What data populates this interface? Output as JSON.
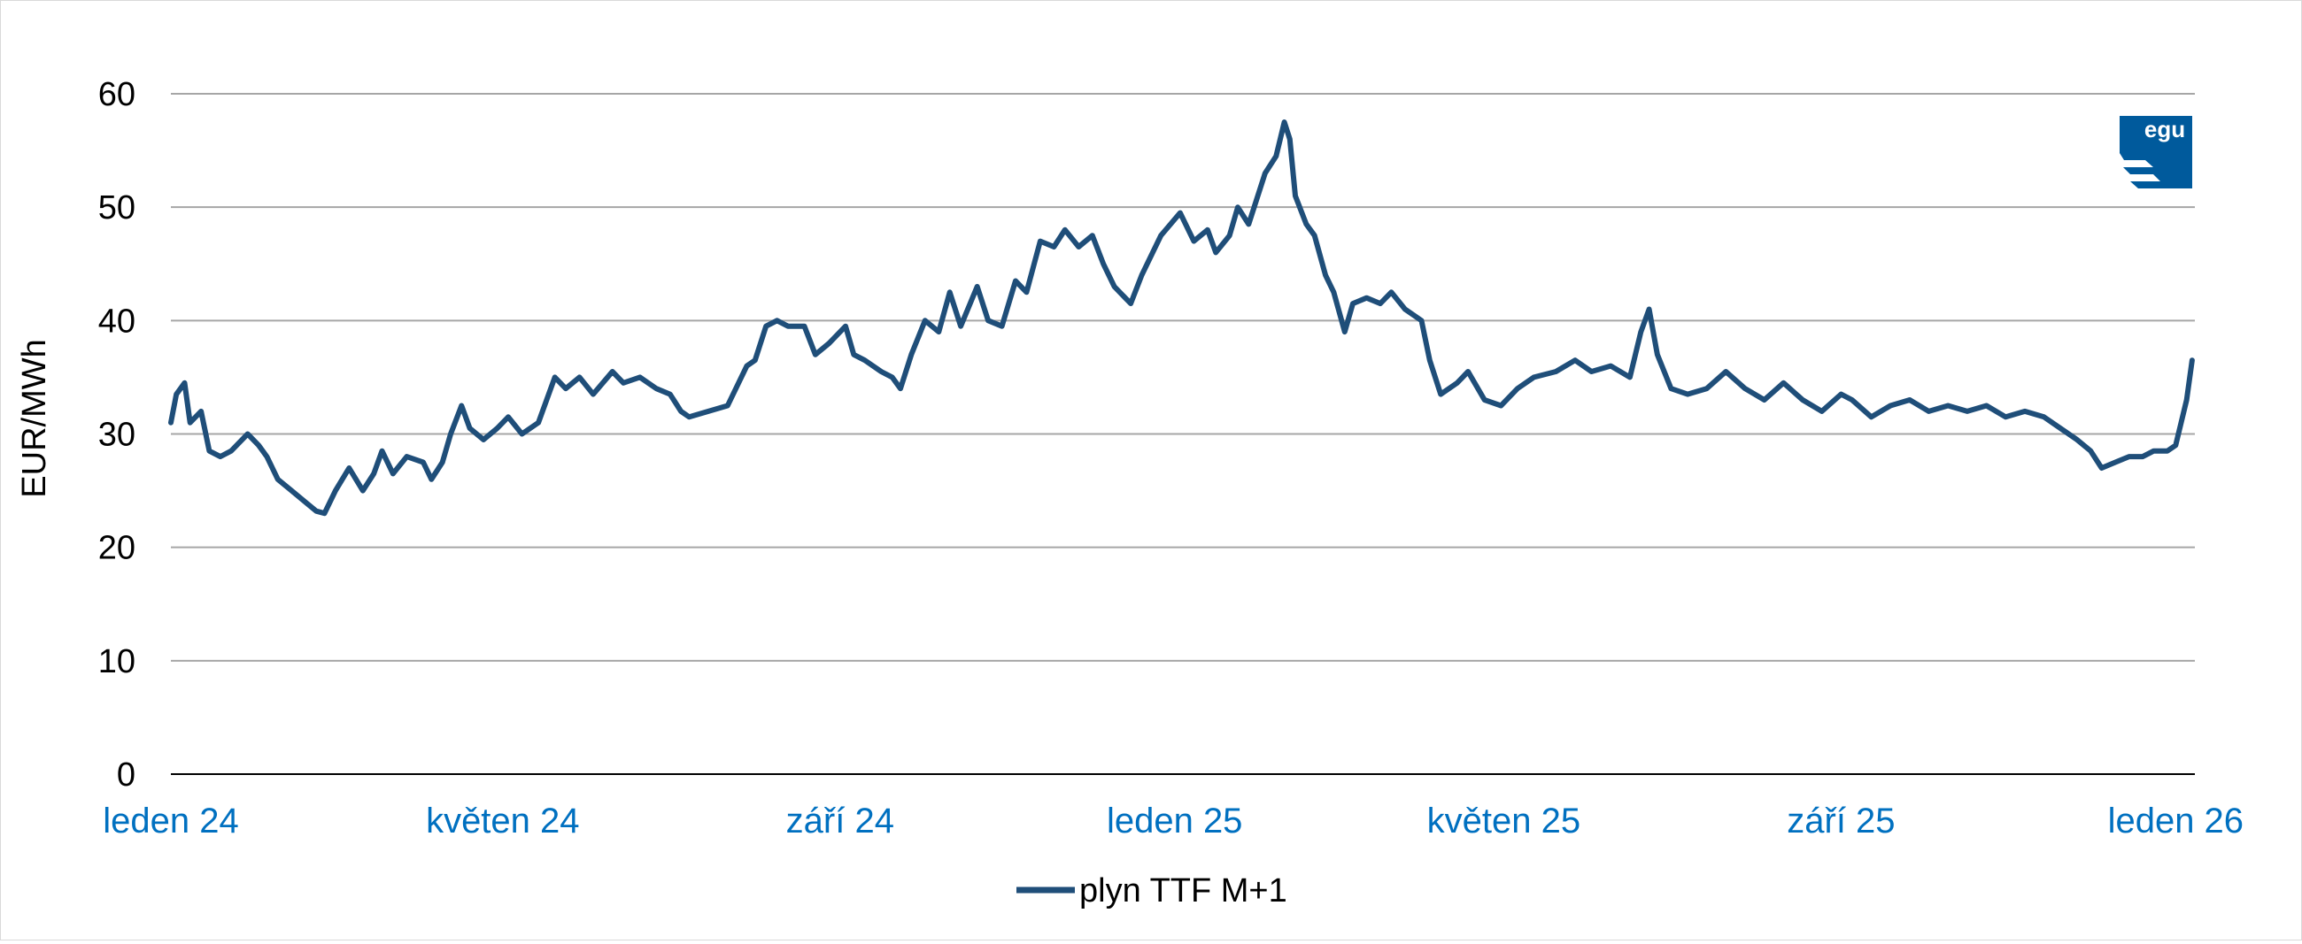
{
  "chart_data": {
    "type": "line",
    "title": "",
    "xlabel": "",
    "ylabel": "EUR/MWh",
    "ylim": [
      0,
      60
    ],
    "yticks": [
      0,
      10,
      20,
      30,
      40,
      50,
      60
    ],
    "xlim": [
      "2024-01-01",
      "2026-01-08"
    ],
    "grid": true,
    "legend_position": "bottom",
    "xticks": [
      {
        "date": "2024-01-01",
        "label": "leden 24"
      },
      {
        "date": "2024-05-01",
        "label": "květen 24"
      },
      {
        "date": "2024-09-01",
        "label": "září 24"
      },
      {
        "date": "2025-01-01",
        "label": "leden 25"
      },
      {
        "date": "2025-05-01",
        "label": "květen 25"
      },
      {
        "date": "2025-09-01",
        "label": "září 25"
      },
      {
        "date": "2026-01-01",
        "label": "leden 26"
      }
    ],
    "series": [
      {
        "name": "plyn TTF M+1",
        "color": "#1f4e79",
        "points": [
          [
            "2024-01-01",
            31.0
          ],
          [
            "2024-01-03",
            33.5
          ],
          [
            "2024-01-06",
            34.5
          ],
          [
            "2024-01-08",
            31.0
          ],
          [
            "2024-01-12",
            32.0
          ],
          [
            "2024-01-15",
            28.5
          ],
          [
            "2024-01-19",
            28.0
          ],
          [
            "2024-01-23",
            28.5
          ],
          [
            "2024-01-29",
            30.0
          ],
          [
            "2024-02-02",
            29.0
          ],
          [
            "2024-02-05",
            28.0
          ],
          [
            "2024-02-09",
            26.0
          ],
          [
            "2024-02-14",
            25.0
          ],
          [
            "2024-02-19",
            24.0
          ],
          [
            "2024-02-23",
            23.2
          ],
          [
            "2024-02-26",
            23.0
          ],
          [
            "2024-03-01",
            25.0
          ],
          [
            "2024-03-06",
            27.0
          ],
          [
            "2024-03-11",
            25.0
          ],
          [
            "2024-03-15",
            26.5
          ],
          [
            "2024-03-18",
            28.5
          ],
          [
            "2024-03-22",
            26.5
          ],
          [
            "2024-03-27",
            28.0
          ],
          [
            "2024-04-02",
            27.5
          ],
          [
            "2024-04-05",
            26.0
          ],
          [
            "2024-04-09",
            27.5
          ],
          [
            "2024-04-12",
            30.0
          ],
          [
            "2024-04-16",
            32.5
          ],
          [
            "2024-04-19",
            30.5
          ],
          [
            "2024-04-24",
            29.5
          ],
          [
            "2024-04-29",
            30.5
          ],
          [
            "2024-05-03",
            31.5
          ],
          [
            "2024-05-08",
            30.0
          ],
          [
            "2024-05-14",
            31.0
          ],
          [
            "2024-05-20",
            35.0
          ],
          [
            "2024-05-24",
            34.0
          ],
          [
            "2024-05-29",
            35.0
          ],
          [
            "2024-06-03",
            33.5
          ],
          [
            "2024-06-10",
            35.5
          ],
          [
            "2024-06-14",
            34.5
          ],
          [
            "2024-06-20",
            35.0
          ],
          [
            "2024-06-26",
            34.0
          ],
          [
            "2024-07-01",
            33.5
          ],
          [
            "2024-07-05",
            32.0
          ],
          [
            "2024-07-08",
            31.5
          ],
          [
            "2024-07-15",
            32.0
          ],
          [
            "2024-07-22",
            32.5
          ],
          [
            "2024-07-29",
            36.0
          ],
          [
            "2024-08-01",
            36.5
          ],
          [
            "2024-08-05",
            39.5
          ],
          [
            "2024-08-09",
            40.0
          ],
          [
            "2024-08-13",
            39.5
          ],
          [
            "2024-08-19",
            39.5
          ],
          [
            "2024-08-23",
            37.0
          ],
          [
            "2024-08-28",
            38.0
          ],
          [
            "2024-09-03",
            39.5
          ],
          [
            "2024-09-06",
            37.0
          ],
          [
            "2024-09-10",
            36.5
          ],
          [
            "2024-09-16",
            35.5
          ],
          [
            "2024-09-20",
            35.0
          ],
          [
            "2024-09-23",
            34.0
          ],
          [
            "2024-09-27",
            37.0
          ],
          [
            "2024-10-02",
            40.0
          ],
          [
            "2024-10-07",
            39.0
          ],
          [
            "2024-10-11",
            42.5
          ],
          [
            "2024-10-15",
            39.5
          ],
          [
            "2024-10-21",
            43.0
          ],
          [
            "2024-10-25",
            40.0
          ],
          [
            "2024-10-30",
            39.5
          ],
          [
            "2024-11-04",
            43.5
          ],
          [
            "2024-11-08",
            42.5
          ],
          [
            "2024-11-13",
            47.0
          ],
          [
            "2024-11-18",
            46.5
          ],
          [
            "2024-11-22",
            48.0
          ],
          [
            "2024-11-27",
            46.5
          ],
          [
            "2024-12-02",
            47.5
          ],
          [
            "2024-12-06",
            45.0
          ],
          [
            "2024-12-10",
            43.0
          ],
          [
            "2024-12-16",
            41.5
          ],
          [
            "2024-12-20",
            44.0
          ],
          [
            "2024-12-27",
            47.5
          ],
          [
            "2025-01-03",
            49.5
          ],
          [
            "2025-01-08",
            47.0
          ],
          [
            "2025-01-13",
            48.0
          ],
          [
            "2025-01-16",
            46.0
          ],
          [
            "2025-01-21",
            47.5
          ],
          [
            "2025-01-24",
            50.0
          ],
          [
            "2025-01-28",
            48.5
          ],
          [
            "2025-02-03",
            53.0
          ],
          [
            "2025-02-07",
            54.5
          ],
          [
            "2025-02-10",
            57.5
          ],
          [
            "2025-02-12",
            56.0
          ],
          [
            "2025-02-14",
            51.0
          ],
          [
            "2025-02-18",
            48.5
          ],
          [
            "2025-02-21",
            47.5
          ],
          [
            "2025-02-25",
            44.0
          ],
          [
            "2025-02-28",
            42.5
          ],
          [
            "2025-03-04",
            39.0
          ],
          [
            "2025-03-07",
            41.5
          ],
          [
            "2025-03-12",
            42.0
          ],
          [
            "2025-03-17",
            41.5
          ],
          [
            "2025-03-21",
            42.5
          ],
          [
            "2025-03-26",
            41.0
          ],
          [
            "2025-04-01",
            40.0
          ],
          [
            "2025-04-04",
            36.5
          ],
          [
            "2025-04-08",
            33.5
          ],
          [
            "2025-04-14",
            34.5
          ],
          [
            "2025-04-18",
            35.5
          ],
          [
            "2025-04-24",
            33.0
          ],
          [
            "2025-04-30",
            32.5
          ],
          [
            "2025-05-06",
            34.0
          ],
          [
            "2025-05-12",
            35.0
          ],
          [
            "2025-05-20",
            35.5
          ],
          [
            "2025-05-27",
            36.5
          ],
          [
            "2025-06-02",
            35.5
          ],
          [
            "2025-06-09",
            36.0
          ],
          [
            "2025-06-16",
            35.0
          ],
          [
            "2025-06-20",
            39.0
          ],
          [
            "2025-06-23",
            41.0
          ],
          [
            "2025-06-26",
            37.0
          ],
          [
            "2025-07-01",
            34.0
          ],
          [
            "2025-07-07",
            33.5
          ],
          [
            "2025-07-14",
            34.0
          ],
          [
            "2025-07-21",
            35.5
          ],
          [
            "2025-07-28",
            34.0
          ],
          [
            "2025-08-04",
            33.0
          ],
          [
            "2025-08-11",
            34.5
          ],
          [
            "2025-08-18",
            33.0
          ],
          [
            "2025-08-25",
            32.0
          ],
          [
            "2025-09-01",
            33.5
          ],
          [
            "2025-09-05",
            33.0
          ],
          [
            "2025-09-12",
            31.5
          ],
          [
            "2025-09-19",
            32.5
          ],
          [
            "2025-09-26",
            33.0
          ],
          [
            "2025-10-03",
            32.0
          ],
          [
            "2025-10-10",
            32.5
          ],
          [
            "2025-10-17",
            32.0
          ],
          [
            "2025-10-24",
            32.5
          ],
          [
            "2025-10-31",
            31.5
          ],
          [
            "2025-11-07",
            32.0
          ],
          [
            "2025-11-14",
            31.5
          ],
          [
            "2025-11-20",
            30.5
          ],
          [
            "2025-11-26",
            29.5
          ],
          [
            "2025-12-01",
            28.5
          ],
          [
            "2025-12-05",
            27.0
          ],
          [
            "2025-12-10",
            27.5
          ],
          [
            "2025-12-15",
            28.0
          ],
          [
            "2025-12-20",
            28.0
          ],
          [
            "2025-12-24",
            28.5
          ],
          [
            "2025-12-29",
            28.5
          ],
          [
            "2026-01-01",
            29.0
          ],
          [
            "2026-01-03",
            31.0
          ],
          [
            "2026-01-05",
            33.0
          ],
          [
            "2026-01-07",
            36.5
          ]
        ]
      }
    ]
  },
  "logo": {
    "text": "egu",
    "color": "#005a9c"
  },
  "colors": {
    "grid": "#a6a6a6",
    "axis": "#000000",
    "xtick": "#0070c0",
    "ytick": "#000000"
  }
}
